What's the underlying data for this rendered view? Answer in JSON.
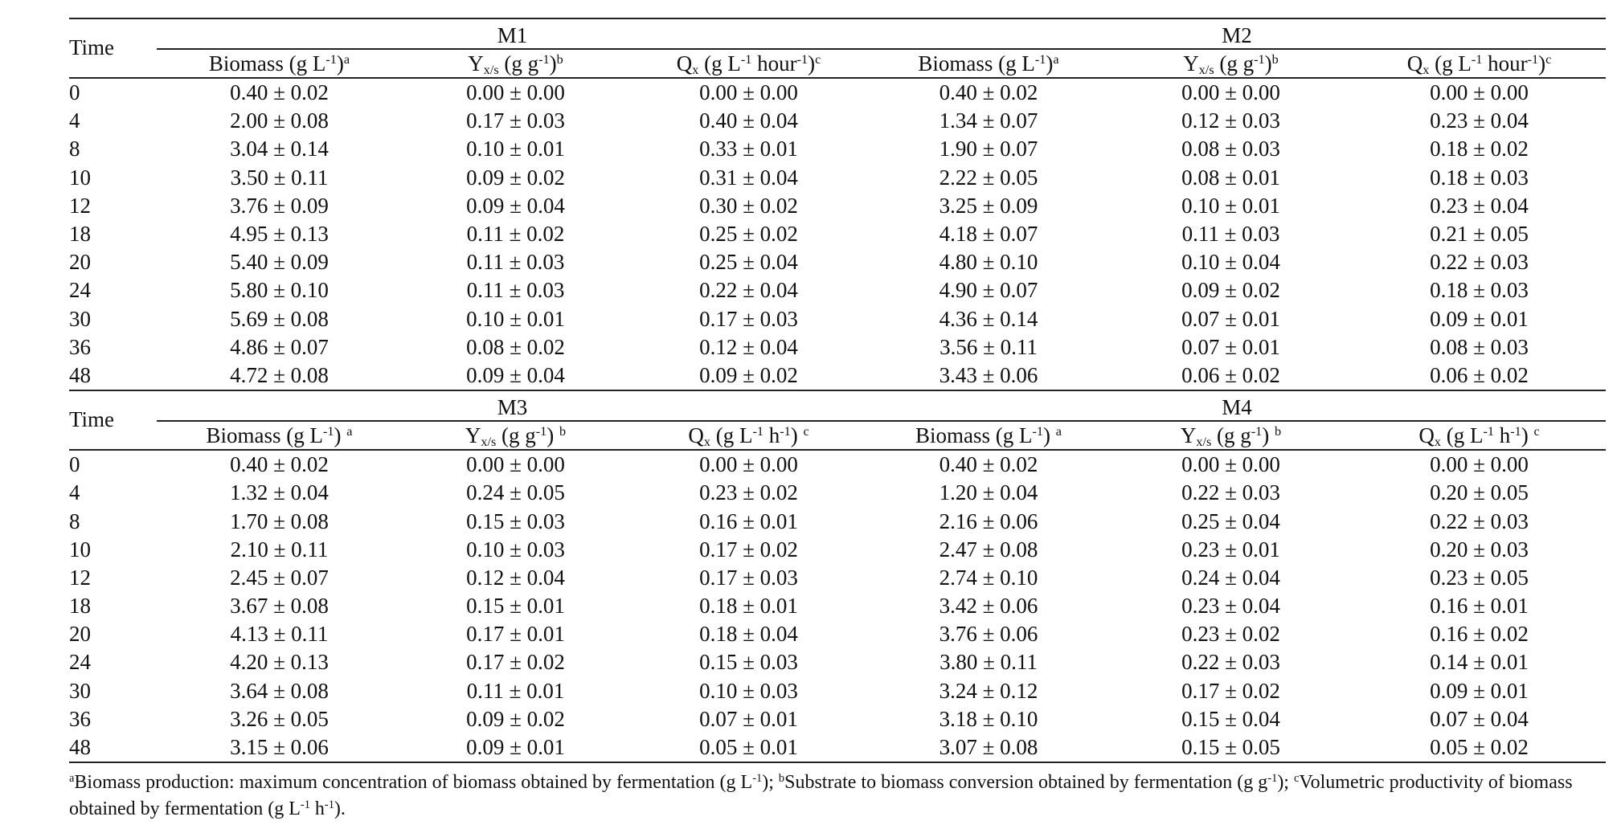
{
  "sections": [
    {
      "time_label": "Time",
      "groups": [
        "M1",
        "M2"
      ],
      "columns": [
        {
          "base": "Biomass (g L",
          "sup1": "-1",
          "close": ")",
          "note": "a"
        },
        {
          "base": "Y",
          "sub": "x/s",
          "rest": " (g g",
          "sup1": "-1",
          "close": ")",
          "note": "b"
        },
        {
          "base": "Q",
          "sub": "x",
          "rest": " (g L",
          "sup1": "-1",
          "mid": " hour",
          "sup2": "-1",
          "close": ")",
          "note": "c"
        },
        {
          "base": "Biomass (g L",
          "sup1": "-1",
          "close": ")",
          "note": "a"
        },
        {
          "base": "Y",
          "sub": "x/s",
          "rest": " (g g",
          "sup1": "-1",
          "close": ")",
          "note": "b"
        },
        {
          "base": "Q",
          "sub": "x",
          "rest": " (g L",
          "sup1": "-1",
          "mid": " hour",
          "sup2": "-1",
          "close": ")",
          "note": "c"
        }
      ],
      "rows": [
        [
          "0",
          "0.40 ±  0.02",
          "0.00 ± 0.00",
          "0.00 ± 0.00",
          "0.40 ± 0.02",
          "0.00 ± 0.00",
          "0.00 ± 0.00"
        ],
        [
          "4",
          "2.00 ± 0.08",
          "0.17 ± 0.03",
          "0.40 ± 0.04",
          "1.34 ± 0.07",
          "0.12 ± 0.03",
          "0.23 ± 0.04"
        ],
        [
          "8",
          "3.04 ± 0.14",
          "0.10 ± 0.01",
          "0.33 ± 0.01",
          "1.90 ± 0.07",
          "0.08 ± 0.03",
          "0.18 ± 0.02"
        ],
        [
          "10",
          "3.50 ± 0.11",
          "0.09 ± 0.02",
          "0.31 ± 0.04",
          "2.22 ± 0.05",
          "0.08 ± 0.01",
          "0.18 ± 0.03"
        ],
        [
          "12",
          "3.76 ± 0.09",
          "0.09 ± 0.04",
          "0.30 ± 0.02",
          "3.25 ± 0.09",
          "0.10 ± 0.01",
          "0.23 ± 0.04"
        ],
        [
          "18",
          "4.95 ± 0.13",
          "0.11 ± 0.02",
          "0.25 ± 0.02",
          "4.18 ± 0.07",
          "0.11 ± 0.03",
          "0.21 ± 0.05"
        ],
        [
          "20",
          "5.40 ± 0.09",
          "0.11 ± 0.03",
          "0.25 ± 0.04",
          "4.80 ± 0.10",
          "0.10 ± 0.04",
          "0.22 ± 0.03"
        ],
        [
          "24",
          "5.80 ± 0.10",
          "0.11 ± 0.03",
          "0.22 ± 0.04",
          "4.90 ± 0.07",
          "0.09 ± 0.02",
          "0.18 ± 0.03"
        ],
        [
          "30",
          "5.69 ± 0.08",
          "0.10 ± 0.01",
          "0.17 ± 0.03",
          "4.36 ± 0.14",
          "0.07 ± 0.01",
          "0.09 ± 0.01"
        ],
        [
          "36",
          "4.86 ± 0.07",
          "0.08 ± 0.02",
          "0.12 ± 0.04",
          "3.56 ± 0.11",
          "0.07 ± 0.01",
          "0.08 ± 0.03"
        ],
        [
          "48",
          "4.72 ± 0.08",
          "0.09 ± 0.04",
          "0.09 ± 0.02",
          "3.43 ± 0.06",
          "0.06 ± 0.02",
          "0.06 ± 0.02"
        ]
      ]
    },
    {
      "time_label": "Time",
      "groups": [
        "M3",
        "M4"
      ],
      "columns": [
        {
          "base": "Biomass (g L",
          "sup1": "-1",
          "close": ") ",
          "note": "a"
        },
        {
          "base": "Y",
          "sub": "x/s",
          "rest": " (g g",
          "sup1": "-1",
          "close": ") ",
          "note": "b"
        },
        {
          "base": "Q",
          "sub": "x",
          "rest": "  (g L",
          "sup1": "-1",
          "mid": " h",
          "sup2": "-1",
          "close": ") ",
          "note": "c"
        },
        {
          "base": "Biomass (g L",
          "sup1": "-1",
          "close": ") ",
          "note": "a"
        },
        {
          "base": "Y",
          "sub": "x/s",
          "rest": " (g g",
          "sup1": "-1",
          "close": ") ",
          "note": "b"
        },
        {
          "base": "Q",
          "sub": "x",
          "rest": "  (g L",
          "sup1": "-1",
          "mid": " h",
          "sup2": "-1",
          "close": ") ",
          "note": "c"
        }
      ],
      "rows": [
        [
          "0",
          "0.40 ± 0.02",
          "0.00 ± 0.00",
          "0.00 ± 0.00",
          "0.40 ± 0.02",
          "0.00 ± 0.00",
          "0.00 ± 0.00"
        ],
        [
          "4",
          "1.32 ± 0.04",
          "0.24 ± 0.05",
          "0.23 ± 0.02",
          "1.20 ± 0.04",
          "0.22 ± 0.03",
          "0.20 ± 0.05"
        ],
        [
          "8",
          "1.70 ± 0.08",
          "0.15 ± 0.03",
          "0.16 ± 0.01",
          "2.16 ± 0.06",
          "0.25 ± 0.04",
          "0.22 ± 0.03"
        ],
        [
          "10",
          "2.10 ± 0.11",
          "0.10 ± 0.03",
          "0.17 ± 0.02",
          "2.47 ± 0.08",
          "0.23 ± 0.01",
          "0.20 ± 0.03"
        ],
        [
          "12",
          "2.45 ± 0.07",
          "0.12 ± 0.04",
          "0.17 ± 0.03",
          "2.74 ± 0.10",
          "0.24 ± 0.04",
          "0.23 ± 0.05"
        ],
        [
          "18",
          "3.67 ± 0.08",
          "0.15 ± 0.01",
          "0.18 ± 0.01",
          "3.42 ± 0.06",
          "0.23 ± 0.04",
          "0.16 ± 0.01"
        ],
        [
          "20",
          "4.13 ± 0.11",
          "0.17 ± 0.01",
          "0.18 ± 0.04",
          "3.76 ± 0.06",
          "0.23 ± 0.02",
          "0.16 ± 0.02"
        ],
        [
          "24",
          "4.20 ± 0.13",
          "0.17 ± 0.02",
          "0.15 ± 0.03",
          "3.80 ± 0.11",
          "0.22 ± 0.03",
          "0.14 ± 0.01"
        ],
        [
          "30",
          "3.64 ± 0.08",
          "0.11 ± 0.01",
          "0.10 ± 0.03",
          "3.24 ± 0.12",
          "0.17 ± 0.02",
          "0.09 ± 0.01"
        ],
        [
          "36",
          "3.26 ± 0.05",
          "0.09 ± 0.02",
          "0.07 ± 0.01",
          "3.18 ± 0.10",
          "0.15 ± 0.04",
          "0.07 ± 0.04"
        ],
        [
          "48",
          "3.15 ± 0.06",
          "0.09 ± 0.01",
          "0.05 ± 0.01",
          "3.07 ± 0.08",
          "0.15 ± 0.05",
          "0.05 ± 0.02"
        ]
      ]
    }
  ],
  "footnote": {
    "a_mark": "a",
    "a_text": "Biomass production: maximum concentration of biomass obtained by fermentation (g L",
    "a_unit_sup": "-1",
    "a_end": "); ",
    "b_mark": "b",
    "b_text": "Substrate to biomass conversion obtained by fermentation (g g",
    "b_unit_sup": "-1",
    "b_end": "); ",
    "c_mark": "c",
    "c_text": "Volumetric productivity of biomass obtained by fermentation (g L",
    "c_unit_sup1": "-1",
    "c_mid": " h",
    "c_unit_sup2": "-1",
    "c_end": ")."
  }
}
